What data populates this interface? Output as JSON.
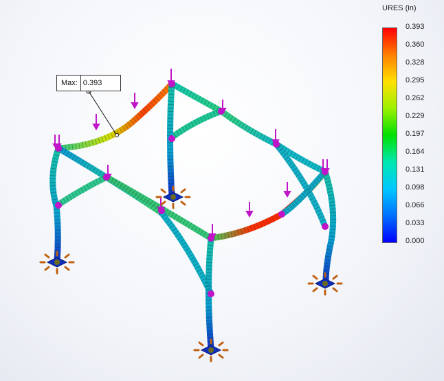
{
  "legend": {
    "title": "URES (in)",
    "ticks": [
      "0.393",
      "0.360",
      "0.328",
      "0.295",
      "0.262",
      "0.229",
      "0.197",
      "0.164",
      "0.131",
      "0.098",
      "0.066",
      "0.033",
      "0.000"
    ],
    "colors": [
      "#ff0000",
      "#ff8000",
      "#ffe000",
      "#9cf000",
      "#00e000",
      "#00e8b0",
      "#00c8ff",
      "#0070ff",
      "#0000ff"
    ]
  },
  "probe": {
    "label": "Max:",
    "value": "0.393"
  }
}
